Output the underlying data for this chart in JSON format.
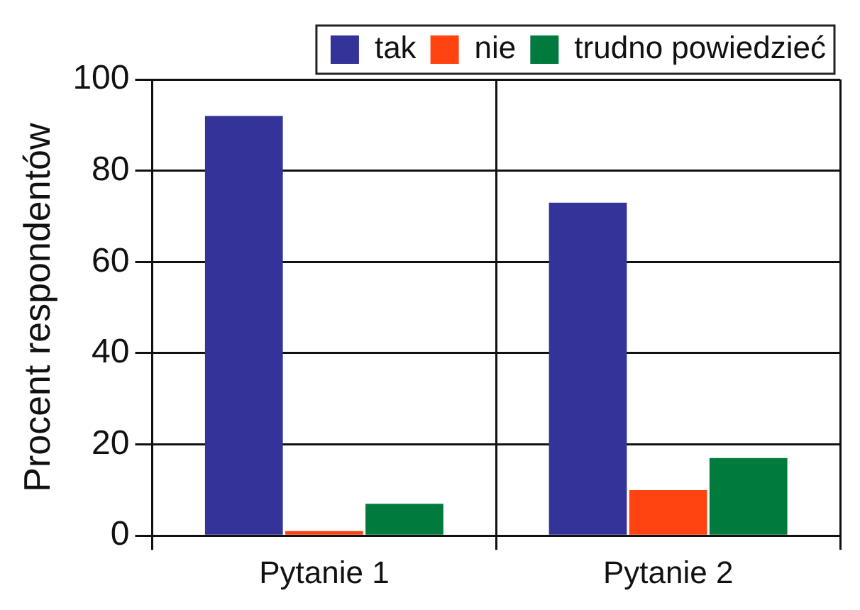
{
  "chart_data": {
    "type": "bar",
    "ylabel": "Procent respondentów",
    "categories": [
      "Pytanie 1",
      "Pytanie 2"
    ],
    "series": [
      {
        "name": "tak",
        "color": "#333399",
        "values": [
          92,
          73
        ]
      },
      {
        "name": "nie",
        "color": "#ff4411",
        "values": [
          1,
          10
        ]
      },
      {
        "name": "trudno powiedzieć",
        "color": "#007a3d",
        "values": [
          7,
          17
        ]
      }
    ],
    "ylim": [
      0,
      100
    ],
    "yticks": [
      0,
      20,
      40,
      60,
      80,
      100
    ],
    "grid": true,
    "legend": "top"
  }
}
